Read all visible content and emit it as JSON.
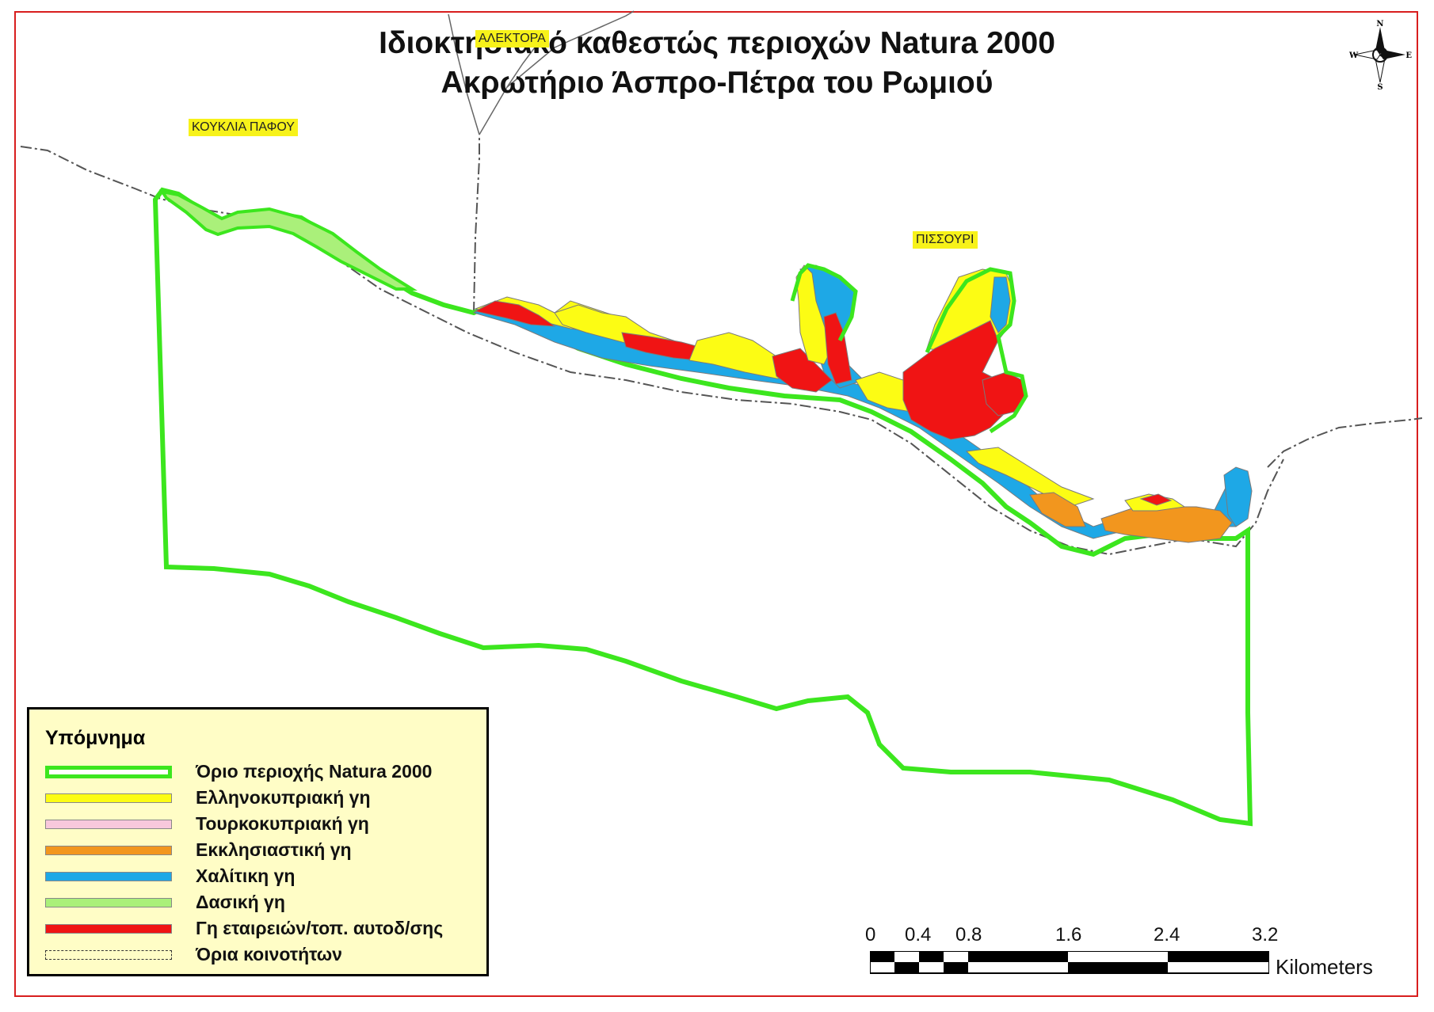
{
  "title": {
    "line1": "Ιδιοκτησιακό καθεστώς περιοχών Natura 2000",
    "line2": "Ακρωτήριο Άσπρο-Πέτρα του Ρωμιού"
  },
  "place_labels": [
    "ΑΛΕΚΤΟΡΑ",
    "ΚΟΥΚΛΙΑ ΠΑΦΟΥ",
    "ΠΙΣΣΟΥΡΙ"
  ],
  "legend": {
    "title": "Υπόμνημα",
    "items": [
      {
        "label": "Όριο περιοχής Natura 2000",
        "color": "#3ce61e"
      },
      {
        "label": "Ελληνοκυπριακή γη",
        "color": "#fcfc14"
      },
      {
        "label": "Τουρκοκυπριακή γη",
        "color": "#f8c8dc"
      },
      {
        "label": "Εκκλησιαστική γη",
        "color": "#f2961e"
      },
      {
        "label": "Χαλίτικη γη",
        "color": "#1ea8e6"
      },
      {
        "label": "Δασική γη",
        "color": "#aaf07a"
      },
      {
        "label": "Γη εταιρειών/τοπ. αυτοδ/σης",
        "color": "#f01414"
      },
      {
        "label": "Όρια κοινοτήτων",
        "color": "#333333"
      }
    ]
  },
  "scale_bar": {
    "ticks": [
      "0",
      "0.4",
      "0.8",
      "1.6",
      "2.4",
      "3.2"
    ],
    "unit": "Kilometers"
  },
  "compass": {
    "n": "N",
    "s": "S",
    "e": "E",
    "w": "W"
  }
}
